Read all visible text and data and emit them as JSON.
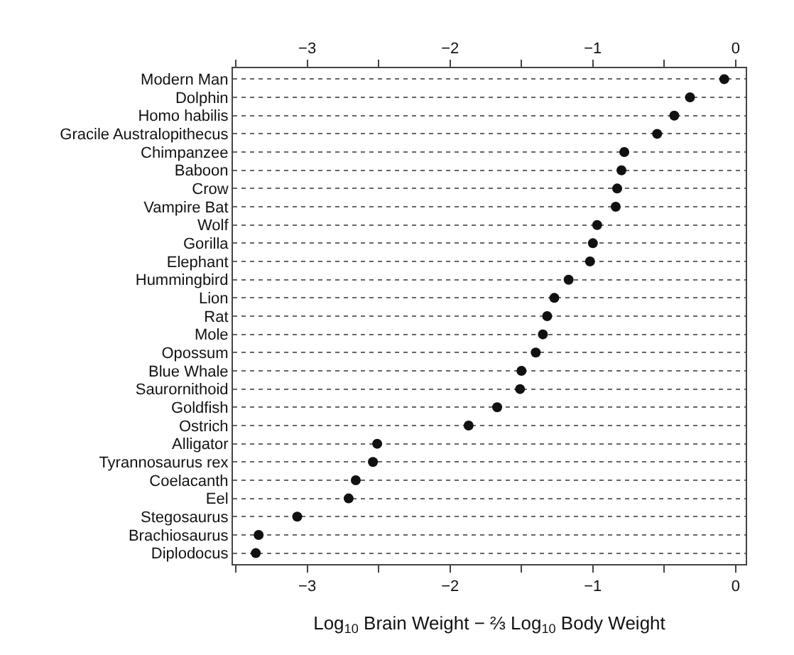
{
  "chart_data": {
    "type": "scatter",
    "xlabel": "Log$_{10}$ Brain Weight − ⅔ Log$_{10}$ Body Weight",
    "categories": [
      "Modern Man",
      "Dolphin",
      "Homo habilis",
      "Gracile Australopithecus",
      "Chimpanzee",
      "Baboon",
      "Crow",
      "Vampire Bat",
      "Wolf",
      "Gorilla",
      "Elephant",
      "Hummingbird",
      "Lion",
      "Rat",
      "Mole",
      "Opossum",
      "Blue Whale",
      "Saurornithoid",
      "Goldfish",
      "Ostrich",
      "Alligator",
      "Tyrannosaurus rex",
      "Coelacanth",
      "Eel",
      "Stegosaurus",
      "Brachiosaurus",
      "Diplodocus"
    ],
    "series": [
      {
        "color": "#111111",
        "values": [
          -0.08,
          -0.32,
          -0.43,
          -0.55,
          -0.78,
          -0.8,
          -0.83,
          -0.84,
          -0.97,
          -1.0,
          -1.02,
          -1.17,
          -1.27,
          -1.32,
          -1.35,
          -1.4,
          -1.5,
          -1.51,
          -1.67,
          -1.87,
          -2.51,
          -2.54,
          -2.66,
          -2.71,
          -3.07,
          -3.34,
          -3.36
        ]
      }
    ],
    "orientation": "horizontal",
    "xlim": [
      -3.52,
      0.07
    ],
    "xticks": [
      {
        "value": -3.5,
        "label": null
      },
      {
        "value": -3,
        "label": "−3"
      },
      {
        "value": -2.5,
        "label": null
      },
      {
        "value": -2,
        "label": "−2"
      },
      {
        "value": -1.5,
        "label": null
      },
      {
        "value": -1,
        "label": "−1"
      },
      {
        "value": -0.5,
        "label": null
      },
      {
        "value": 0,
        "label": "0"
      }
    ],
    "x2lim": [
      -3.52,
      0.07
    ],
    "x2ticks": [
      {
        "value": -3.5,
        "label": null
      },
      {
        "value": -3,
        "label": "−3"
      },
      {
        "value": -2.5,
        "label": null
      },
      {
        "value": -2,
        "label": "−2"
      },
      {
        "value": -1.5,
        "label": null
      },
      {
        "value": -1,
        "label": "−1"
      },
      {
        "value": -0.5,
        "label": null
      },
      {
        "value": 0,
        "label": "0"
      }
    ],
    "grid": "y",
    "line_style": "dotted",
    "marker": "circle"
  }
}
